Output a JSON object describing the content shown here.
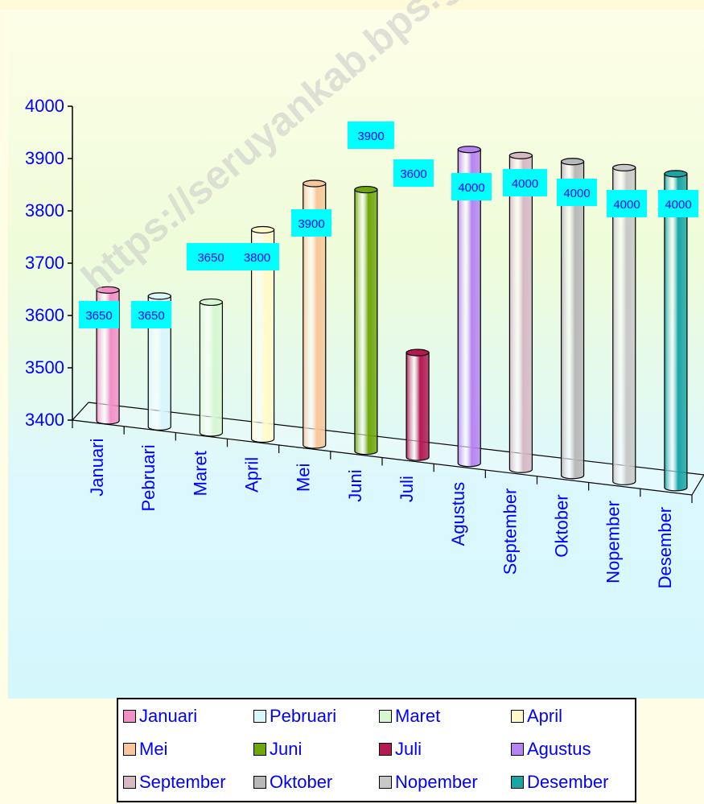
{
  "watermark": "https://seruyankab.bps.go.id",
  "chart_data": {
    "type": "bar",
    "style": "3d-cylinder",
    "categories": [
      "Januari",
      "Pebruari",
      "Maret",
      "April",
      "Mei",
      "Juni",
      "Juli",
      "Agustus",
      "September",
      "Oktober",
      "Nopember",
      "Desember"
    ],
    "values": [
      3650,
      3650,
      3650,
      3800,
      3900,
      3900,
      3600,
      4000,
      4000,
      4000,
      4000,
      4000
    ],
    "data_labels": [
      "3650",
      "3650",
      "3650",
      "3800",
      "3900",
      "3900",
      "3600",
      "4000",
      "4000",
      "4000",
      "4000",
      "4000"
    ],
    "colors": [
      "#f28fc7",
      "#d9f6fb",
      "#d6f7d2",
      "#fffac8",
      "#f7c79b",
      "#6fa60c",
      "#b31a52",
      "#b684f0",
      "#d6b9c5",
      "#b8b8b8",
      "#c8c8c8",
      "#19a5a5"
    ],
    "y_ticks": [
      "4000",
      "3900",
      "3800",
      "3700",
      "3600",
      "3500",
      "3400"
    ],
    "ylim": [
      3400,
      4000
    ],
    "title": "",
    "xlabel": "",
    "ylabel": "",
    "grid": false,
    "legend_position": "bottom",
    "axis_text_color": "#0000ff",
    "label_box_color": "#00ffff"
  }
}
